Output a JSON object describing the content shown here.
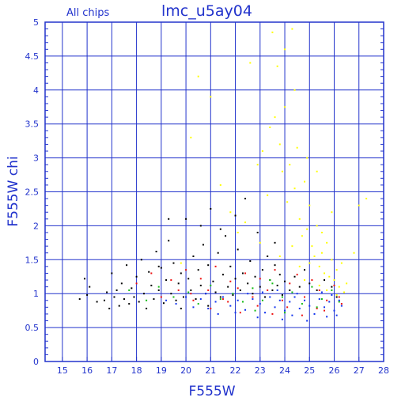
{
  "chart_data": {
    "type": "scatter",
    "title": "lmc_u5ay04",
    "subtitle": "All chips",
    "xlabel": "F555W",
    "ylabel": "F555W chi",
    "xlim": [
      14.3,
      28
    ],
    "ylim": [
      0,
      5
    ],
    "x_ticks": [
      15,
      16,
      17,
      18,
      19,
      20,
      21,
      22,
      23,
      24,
      25,
      26,
      27,
      28
    ],
    "y_ticks": [
      0,
      0.5,
      1,
      1.5,
      2,
      2.5,
      3,
      3.5,
      4,
      4.5,
      5
    ],
    "y_tick_labels": [
      "0",
      "0.5",
      "1",
      "1.5",
      "2",
      "2.5",
      "3",
      "3.5",
      "4",
      "4.5",
      "5"
    ],
    "grid": true,
    "colors": {
      "axis": "#2233cc",
      "grid": "#2233cc",
      "text": "#2233cc",
      "background": "#ffffff"
    },
    "series": [
      {
        "color": "#000000",
        "points": [
          [
            15.7,
            0.92
          ],
          [
            15.9,
            1.22
          ],
          [
            16.0,
            0.98
          ],
          [
            16.1,
            1.1
          ],
          [
            16.4,
            0.88
          ],
          [
            16.7,
            0.9
          ],
          [
            16.8,
            1.02
          ],
          [
            16.9,
            0.78
          ],
          [
            17.0,
            1.3
          ],
          [
            17.1,
            0.95
          ],
          [
            17.2,
            1.05
          ],
          [
            17.3,
            0.82
          ],
          [
            17.4,
            1.15
          ],
          [
            17.5,
            0.92
          ],
          [
            17.6,
            1.42
          ],
          [
            17.7,
            0.85
          ],
          [
            17.8,
            1.08
          ],
          [
            17.9,
            0.95
          ],
          [
            18.0,
            1.25
          ],
          [
            18.1,
            0.88
          ],
          [
            18.2,
            1.5
          ],
          [
            18.3,
            1.0
          ],
          [
            18.4,
            0.78
          ],
          [
            18.5,
            1.32
          ],
          [
            18.6,
            1.12
          ],
          [
            18.7,
            0.92
          ],
          [
            18.8,
            1.62
          ],
          [
            18.9,
            1.05
          ],
          [
            19.0,
            1.38
          ],
          [
            19.1,
            0.86
          ],
          [
            19.2,
            1.2
          ],
          [
            19.3,
            1.78
          ],
          [
            19.4,
            1.0
          ],
          [
            19.5,
            1.45
          ],
          [
            19.6,
            0.9
          ],
          [
            19.7,
            1.15
          ],
          [
            19.8,
            1.3
          ],
          [
            19.9,
            0.95
          ],
          [
            20.0,
            2.1
          ],
          [
            20.1,
            1.22
          ],
          [
            20.2,
            1.05
          ],
          [
            20.3,
            1.55
          ],
          [
            20.4,
            0.92
          ],
          [
            20.5,
            1.35
          ],
          [
            20.6,
            1.12
          ],
          [
            20.7,
            1.72
          ],
          [
            20.8,
            1.0
          ],
          [
            20.9,
            1.42
          ],
          [
            21.0,
            2.25
          ],
          [
            21.1,
            1.18
          ],
          [
            21.2,
            1.02
          ],
          [
            21.3,
            1.6
          ],
          [
            21.4,
            0.95
          ],
          [
            21.5,
            1.28
          ],
          [
            21.6,
            1.85
          ],
          [
            21.7,
            1.1
          ],
          [
            21.8,
            1.4
          ],
          [
            21.9,
            0.98
          ],
          [
            22.0,
            1.22
          ],
          [
            22.1,
            1.65
          ],
          [
            22.2,
            1.05
          ],
          [
            22.3,
            1.3
          ],
          [
            22.4,
            2.4
          ],
          [
            22.5,
            1.15
          ],
          [
            22.6,
            1.48
          ],
          [
            22.7,
            1.0
          ],
          [
            22.8,
            1.25
          ],
          [
            22.9,
            1.9
          ],
          [
            23.0,
            1.1
          ],
          [
            23.1,
            1.35
          ],
          [
            23.2,
            0.95
          ],
          [
            23.3,
            1.55
          ],
          [
            23.4,
            1.2
          ],
          [
            23.5,
            1.05
          ],
          [
            23.6,
            1.42
          ],
          [
            23.7,
            1.12
          ],
          [
            23.8,
            1.28
          ],
          [
            23.9,
            0.98
          ],
          [
            24.0,
            1.18
          ],
          [
            24.2,
            1.05
          ],
          [
            24.4,
            1.25
          ],
          [
            24.6,
            1.1
          ],
          [
            24.8,
            1.35
          ],
          [
            25.0,
            1.15
          ],
          [
            25.3,
            1.05
          ],
          [
            25.6,
            1.2
          ],
          [
            25.9,
            1.1
          ],
          [
            26.1,
            0.95
          ],
          [
            19.3,
            2.1
          ],
          [
            20.6,
            2.0
          ],
          [
            21.4,
            1.95
          ],
          [
            22.0,
            2.15
          ],
          [
            23.6,
            1.75
          ],
          [
            18.9,
            1.4
          ],
          [
            19.8,
            0.78
          ],
          [
            20.9,
            0.82
          ]
        ]
      },
      {
        "color": "#ee1111",
        "points": [
          [
            18.0,
            1.15
          ],
          [
            18.6,
            1.3
          ],
          [
            19.0,
            0.95
          ],
          [
            19.4,
            1.2
          ],
          [
            19.7,
            1.05
          ],
          [
            20.0,
            1.35
          ],
          [
            20.3,
            0.9
          ],
          [
            20.6,
            1.22
          ],
          [
            20.9,
            1.05
          ],
          [
            21.2,
            1.4
          ],
          [
            21.5,
            0.92
          ],
          [
            21.8,
            1.18
          ],
          [
            22.1,
            1.08
          ],
          [
            22.4,
            1.3
          ],
          [
            22.7,
            0.95
          ],
          [
            23.0,
            1.22
          ],
          [
            23.3,
            1.05
          ],
          [
            23.6,
            1.35
          ],
          [
            23.9,
            0.9
          ],
          [
            24.2,
            1.15
          ],
          [
            24.5,
            1.28
          ],
          [
            24.8,
            0.95
          ],
          [
            25.1,
            1.2
          ],
          [
            25.4,
            1.05
          ],
          [
            25.7,
            0.9
          ],
          [
            26.0,
            1.12
          ],
          [
            26.3,
            0.85
          ],
          [
            21.0,
            0.78
          ],
          [
            22.2,
            0.72
          ],
          [
            23.5,
            0.7
          ],
          [
            24.7,
            0.68
          ],
          [
            25.6,
            0.75
          ],
          [
            20.2,
            1.0
          ],
          [
            21.7,
            0.88
          ],
          [
            22.9,
            0.82
          ],
          [
            24.1,
            0.8
          ],
          [
            25.3,
            0.78
          ],
          [
            26.2,
            0.95
          ]
        ]
      },
      {
        "color": "#11bb11",
        "points": [
          [
            17.7,
            1.05
          ],
          [
            18.4,
            0.9
          ],
          [
            18.9,
            1.1
          ],
          [
            19.5,
            0.95
          ],
          [
            20.1,
            1.02
          ],
          [
            20.5,
            0.85
          ],
          [
            21.0,
            1.12
          ],
          [
            21.4,
            0.92
          ],
          [
            21.9,
            1.0
          ],
          [
            22.3,
            0.88
          ],
          [
            22.7,
            1.08
          ],
          [
            23.1,
            0.9
          ],
          [
            23.5,
            1.15
          ],
          [
            23.9,
            0.95
          ],
          [
            24.3,
            1.02
          ],
          [
            24.7,
            0.85
          ],
          [
            25.1,
            1.1
          ],
          [
            25.5,
            0.92
          ],
          [
            25.9,
            1.05
          ],
          [
            26.2,
            0.88
          ],
          [
            22.8,
            0.75
          ],
          [
            24.0,
            0.72
          ],
          [
            25.3,
            0.8
          ],
          [
            23.4,
            1.2
          ]
        ]
      },
      {
        "color": "#1133ee",
        "points": [
          [
            19.2,
            0.9
          ],
          [
            19.6,
            0.85
          ],
          [
            20.0,
            0.95
          ],
          [
            20.3,
            0.8
          ],
          [
            20.6,
            0.92
          ],
          [
            20.9,
            0.78
          ],
          [
            21.2,
            0.88
          ],
          [
            21.5,
            0.95
          ],
          [
            21.8,
            0.82
          ],
          [
            22.1,
            0.9
          ],
          [
            22.4,
            0.76
          ],
          [
            22.7,
            0.92
          ],
          [
            23.0,
            0.85
          ],
          [
            23.2,
            0.72
          ],
          [
            23.4,
            0.95
          ],
          [
            23.6,
            0.8
          ],
          [
            23.8,
            0.9
          ],
          [
            24.0,
            0.75
          ],
          [
            24.2,
            0.88
          ],
          [
            24.4,
            0.95
          ],
          [
            24.6,
            0.78
          ],
          [
            24.8,
            0.9
          ],
          [
            25.0,
            0.82
          ],
          [
            25.2,
            0.7
          ],
          [
            25.4,
            0.92
          ],
          [
            25.6,
            0.8
          ],
          [
            25.8,
            0.88
          ],
          [
            26.0,
            0.75
          ],
          [
            26.2,
            0.9
          ],
          [
            26.3,
            0.82
          ],
          [
            22.9,
            0.65
          ],
          [
            23.9,
            0.62
          ],
          [
            24.9,
            0.6
          ],
          [
            25.7,
            0.66
          ],
          [
            21.3,
            0.7
          ],
          [
            22.5,
            1.0
          ],
          [
            23.7,
            1.05
          ],
          [
            24.5,
            1.0
          ],
          [
            25.5,
            1.02
          ],
          [
            20.8,
            1.0
          ],
          [
            26.1,
            0.68
          ],
          [
            25.9,
            0.98
          ],
          [
            24.3,
            0.68
          ],
          [
            23.1,
            1.02
          ],
          [
            22.0,
            0.72
          ]
        ]
      },
      {
        "color": "#ffff00",
        "points": [
          [
            19.8,
            1.45
          ],
          [
            20.2,
            3.3
          ],
          [
            20.5,
            4.2
          ],
          [
            21.0,
            3.9
          ],
          [
            21.4,
            2.6
          ],
          [
            21.8,
            2.2
          ],
          [
            22.1,
            1.9
          ],
          [
            22.6,
            4.4
          ],
          [
            22.9,
            2.9
          ],
          [
            23.1,
            3.1
          ],
          [
            23.3,
            2.45
          ],
          [
            23.5,
            4.85
          ],
          [
            23.6,
            3.6
          ],
          [
            23.7,
            4.35
          ],
          [
            23.8,
            3.2
          ],
          [
            23.9,
            2.8
          ],
          [
            24.0,
            3.75
          ],
          [
            24.1,
            2.35
          ],
          [
            24.2,
            2.9
          ],
          [
            24.3,
            4.9
          ],
          [
            24.4,
            2.55
          ],
          [
            24.5,
            3.15
          ],
          [
            24.6,
            2.1
          ],
          [
            24.7,
            1.85
          ],
          [
            24.8,
            2.65
          ],
          [
            24.9,
            1.95
          ],
          [
            25.0,
            2.3
          ],
          [
            25.1,
            1.7
          ],
          [
            25.2,
            1.55
          ],
          [
            25.3,
            2.0
          ],
          [
            25.4,
            1.4
          ],
          [
            25.5,
            1.6
          ],
          [
            25.6,
            1.3
          ],
          [
            25.7,
            1.75
          ],
          [
            25.8,
            1.25
          ],
          [
            25.9,
            1.5
          ],
          [
            26.0,
            1.2
          ],
          [
            26.1,
            1.35
          ],
          [
            26.2,
            1.1
          ],
          [
            26.3,
            1.45
          ],
          [
            26.5,
            1.15
          ],
          [
            26.8,
            1.6
          ],
          [
            27.0,
            2.3
          ],
          [
            27.3,
            2.4
          ],
          [
            24.0,
            4.6
          ],
          [
            24.4,
            4.0
          ],
          [
            23.4,
            3.45
          ],
          [
            24.9,
            3.0
          ],
          [
            25.3,
            2.8
          ],
          [
            23.8,
            1.55
          ],
          [
            24.3,
            1.7
          ],
          [
            25.0,
            1.45
          ],
          [
            25.5,
            1.9
          ],
          [
            25.9,
            2.2
          ],
          [
            22.4,
            2.05
          ],
          [
            23.0,
            1.75
          ],
          [
            24.6,
            1.4
          ],
          [
            25.7,
            1.05
          ],
          [
            26.1,
            0.98
          ],
          [
            25.4,
            1.12
          ],
          [
            24.8,
            1.2
          ],
          [
            26.4,
            1.02
          ]
        ]
      }
    ]
  }
}
